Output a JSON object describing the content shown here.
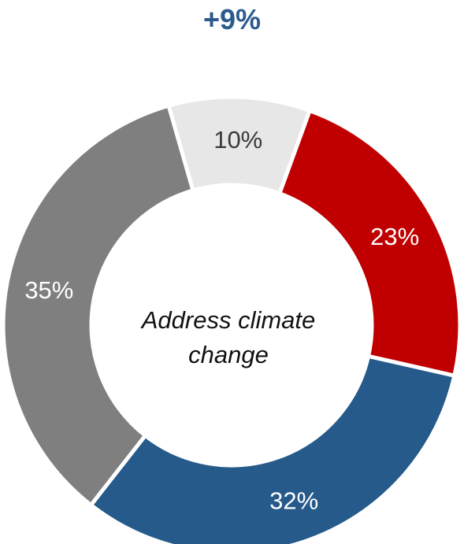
{
  "headline": "+9%",
  "center_label_line1": "Address climate",
  "center_label_line2": "change",
  "chart_data": {
    "type": "pie",
    "donut": true,
    "slices": [
      {
        "label": "10%",
        "value": 10,
        "color": "#e7e7e7",
        "text_color": "#3a3a3a"
      },
      {
        "label": "23%",
        "value": 23,
        "color": "#c00000",
        "text_color": "#ffffff"
      },
      {
        "label": "32%",
        "value": 32,
        "color": "#265a8a",
        "text_color": "#ffffff"
      },
      {
        "label": "35%",
        "value": 35,
        "color": "#7f7f7f",
        "text_color": "#ffffff"
      }
    ],
    "start_angle_deg": -16
  }
}
